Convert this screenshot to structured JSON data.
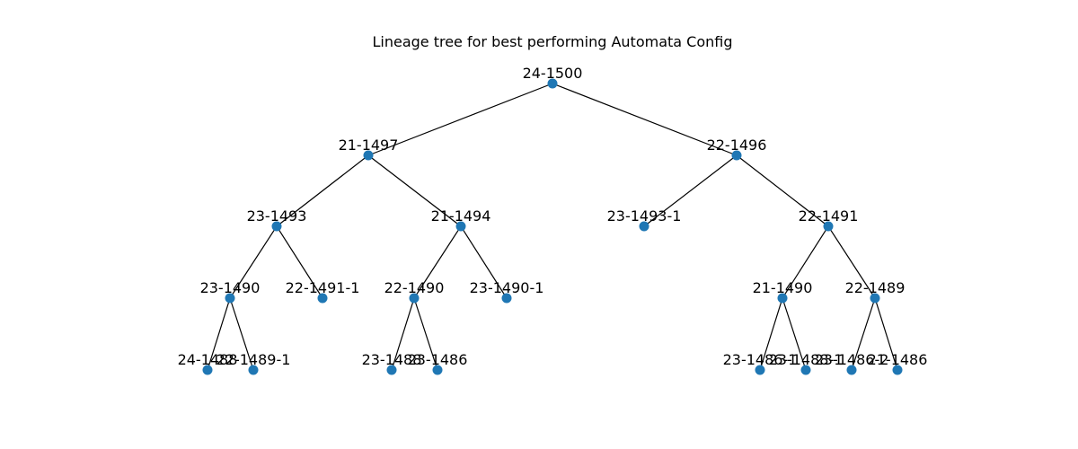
{
  "title": "Lineage tree for best performing Automata Config",
  "node_color": "#1f77b4",
  "edge_color": "#000000",
  "nodes": [
    {
      "id": "n0",
      "label": "24-1500"
    },
    {
      "id": "n1",
      "label": "21-1497"
    },
    {
      "id": "n2",
      "label": "22-1496"
    },
    {
      "id": "n3",
      "label": "23-1493"
    },
    {
      "id": "n4",
      "label": "21-1494"
    },
    {
      "id": "n5",
      "label": "23-1493-1"
    },
    {
      "id": "n6",
      "label": "22-1491"
    },
    {
      "id": "n7",
      "label": "23-1490"
    },
    {
      "id": "n8",
      "label": "22-1491-1"
    },
    {
      "id": "n9",
      "label": "22-1490"
    },
    {
      "id": "n10",
      "label": "23-1490-1"
    },
    {
      "id": "n11",
      "label": "21-1490"
    },
    {
      "id": "n12",
      "label": "22-1489"
    },
    {
      "id": "n13",
      "label": "24-1488"
    },
    {
      "id": "n14",
      "label": "22-1489-1"
    },
    {
      "id": "n15",
      "label": "23-1488"
    },
    {
      "id": "n16",
      "label": "23-1486"
    },
    {
      "id": "n17",
      "label": "23-1486-1"
    },
    {
      "id": "n18",
      "label": "23-1488-1"
    },
    {
      "id": "n19",
      "label": "23-1486-2"
    },
    {
      "id": "n20",
      "label": "21-1486"
    }
  ],
  "edges": [
    [
      "n0",
      "n1"
    ],
    [
      "n0",
      "n2"
    ],
    [
      "n1",
      "n3"
    ],
    [
      "n1",
      "n4"
    ],
    [
      "n2",
      "n5"
    ],
    [
      "n2",
      "n6"
    ],
    [
      "n3",
      "n7"
    ],
    [
      "n3",
      "n8"
    ],
    [
      "n4",
      "n9"
    ],
    [
      "n4",
      "n10"
    ],
    [
      "n6",
      "n11"
    ],
    [
      "n6",
      "n12"
    ],
    [
      "n7",
      "n13"
    ],
    [
      "n7",
      "n14"
    ],
    [
      "n9",
      "n15"
    ],
    [
      "n9",
      "n16"
    ],
    [
      "n11",
      "n17"
    ],
    [
      "n11",
      "n18"
    ],
    [
      "n12",
      "n19"
    ],
    [
      "n12",
      "n20"
    ]
  ]
}
